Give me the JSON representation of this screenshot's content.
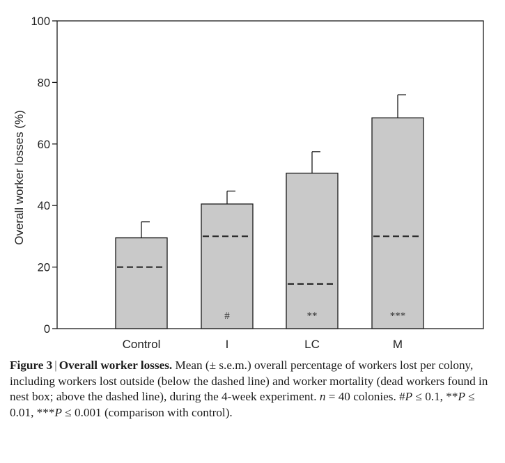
{
  "chart_data": {
    "type": "bar",
    "stacked": true,
    "categories": [
      "Control",
      "I",
      "LC",
      "M"
    ],
    "series": [
      {
        "name": "Workers lost outside (below the dashed line)",
        "values": [
          20,
          30,
          14.5,
          30
        ]
      },
      {
        "name": "Worker mortality (above the dashed line)",
        "values": [
          9.5,
          10.5,
          36,
          38.5
        ]
      }
    ],
    "totals": [
      29.5,
      40.5,
      50.5,
      68.5
    ],
    "sem": [
      5.2,
      4.2,
      7,
      7.5
    ],
    "significance": [
      "",
      "#",
      "**",
      "***"
    ],
    "title": "",
    "xlabel": "",
    "ylabel": "Overall worker losses (%)",
    "ylim": [
      0,
      100
    ],
    "yticks": [
      "0",
      "20",
      "40",
      "60",
      "80",
      "100"
    ],
    "grid": false,
    "colors": {
      "bar": "#c9c9c9",
      "outline": "#1a1a1a",
      "dash": "#1a1a1a"
    }
  },
  "caption": {
    "label": "Figure 3",
    "separator": "|",
    "title": "Overall worker losses.",
    "text_part1": "Mean (± s.e.m.) overall percentage of workers lost per colony, including workers lost outside (below the dashed line) and worker mortality (dead workers found in nest box; above the dashed line), during the 4-week experiment.",
    "n_var": "n",
    "n_text": " = 40 colonies. ",
    "sig1_symbol": "#",
    "sig1_var": "P",
    "sig1_text": " ≤ 0.1, ",
    "sig2_symbol": "**",
    "sig2_var": "P",
    "sig2_text": " ≤ 0.01, ",
    "sig3_symbol": "***",
    "sig3_var": "P",
    "sig3_text": " ≤ 0.001 (comparison with control)."
  }
}
